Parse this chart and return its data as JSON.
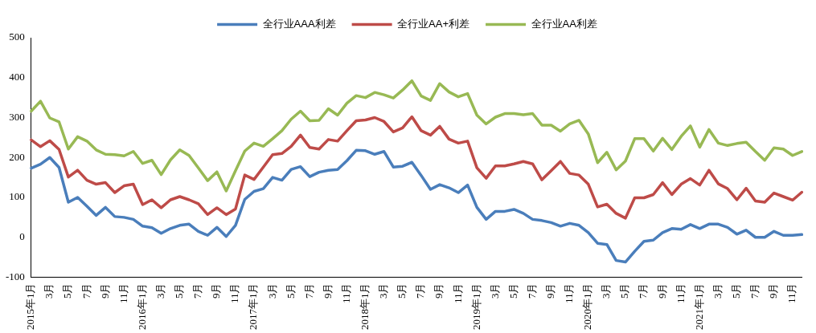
{
  "chart_data": {
    "type": "line",
    "categories": [
      "2015年1月",
      null,
      "3月",
      null,
      "5月",
      null,
      "7月",
      null,
      "9月",
      null,
      "11月",
      null,
      "2016年1月",
      null,
      "3月",
      null,
      "5月",
      null,
      "7月",
      null,
      "9月",
      null,
      "11月",
      null,
      "2017年1月",
      null,
      "3月",
      null,
      "5月",
      null,
      "7月",
      null,
      "9月",
      null,
      "11月",
      null,
      "2018年1月",
      null,
      "3月",
      null,
      "5月",
      null,
      "7月",
      null,
      "9月",
      null,
      "11月",
      null,
      "2019年1月",
      null,
      "3月",
      null,
      "5月",
      null,
      "7月",
      null,
      "9月",
      null,
      "11月",
      null,
      "2020年1月",
      null,
      "3月",
      null,
      "5月",
      null,
      "7月",
      null,
      "9月",
      null,
      "11月",
      null,
      "2021年1月",
      null,
      "3月",
      null,
      "5月",
      null,
      "7月",
      null,
      "9月",
      null,
      "11月",
      null
    ],
    "series": [
      {
        "name": "全行业AAA利差",
        "color": "#4a7ebb",
        "values": [
          173,
          183,
          200,
          175,
          88,
          100,
          78,
          55,
          75,
          52,
          50,
          45,
          28,
          24,
          10,
          22,
          30,
          33,
          15,
          5,
          25,
          2,
          30,
          95,
          115,
          122,
          150,
          143,
          170,
          177,
          152,
          163,
          168,
          170,
          192,
          218,
          217,
          208,
          215,
          176,
          178,
          188,
          155,
          120,
          132,
          124,
          112,
          131,
          75,
          45,
          65,
          65,
          70,
          60,
          45,
          42,
          37,
          28,
          35,
          30,
          12,
          -15,
          -18,
          -58,
          -62,
          -35,
          -10,
          -7,
          12,
          22,
          20,
          32,
          22,
          33,
          33,
          25,
          8,
          18,
          0,
          0,
          15,
          5,
          5,
          7
        ]
      },
      {
        "name": "全行业AA+利差",
        "color": "#be4b48",
        "values": [
          244,
          227,
          242,
          220,
          151,
          168,
          143,
          133,
          137,
          112,
          129,
          133,
          82,
          94,
          74,
          94,
          102,
          94,
          84,
          57,
          74,
          57,
          71,
          156,
          145,
          176,
          207,
          210,
          228,
          256,
          225,
          221,
          245,
          241,
          267,
          292,
          294,
          300,
          290,
          264,
          274,
          302,
          267,
          256,
          278,
          246,
          236,
          241,
          174,
          148,
          179,
          179,
          184,
          190,
          184,
          144,
          167,
          190,
          160,
          156,
          133,
          76,
          83,
          60,
          48,
          99,
          99,
          107,
          137,
          107,
          133,
          147,
          131,
          168,
          134,
          122,
          94,
          123,
          91,
          88,
          111,
          102,
          93,
          113
        ]
      },
      {
        "name": "全行业AA利差",
        "color": "#98b954",
        "values": [
          316,
          341,
          299,
          289,
          221,
          252,
          241,
          219,
          208,
          207,
          204,
          215,
          185,
          193,
          157,
          194,
          219,
          205,
          174,
          142,
          164,
          116,
          167,
          216,
          236,
          228,
          247,
          267,
          296,
          316,
          292,
          293,
          322,
          306,
          336,
          355,
          350,
          363,
          357,
          349,
          369,
          392,
          354,
          343,
          385,
          364,
          352,
          360,
          306,
          284,
          301,
          310,
          310,
          307,
          310,
          281,
          281,
          266,
          284,
          293,
          259,
          187,
          213,
          169,
          191,
          247,
          247,
          216,
          248,
          220,
          253,
          279,
          226,
          270,
          236,
          230,
          235,
          238,
          215,
          193,
          224,
          221,
          205,
          215
        ]
      }
    ],
    "ylim": [
      -100,
      500
    ],
    "yticks": [
      -100,
      0,
      100,
      200,
      300,
      400,
      500
    ],
    "grid": false,
    "legend": "top",
    "marker": "none",
    "line_style": "solid"
  }
}
